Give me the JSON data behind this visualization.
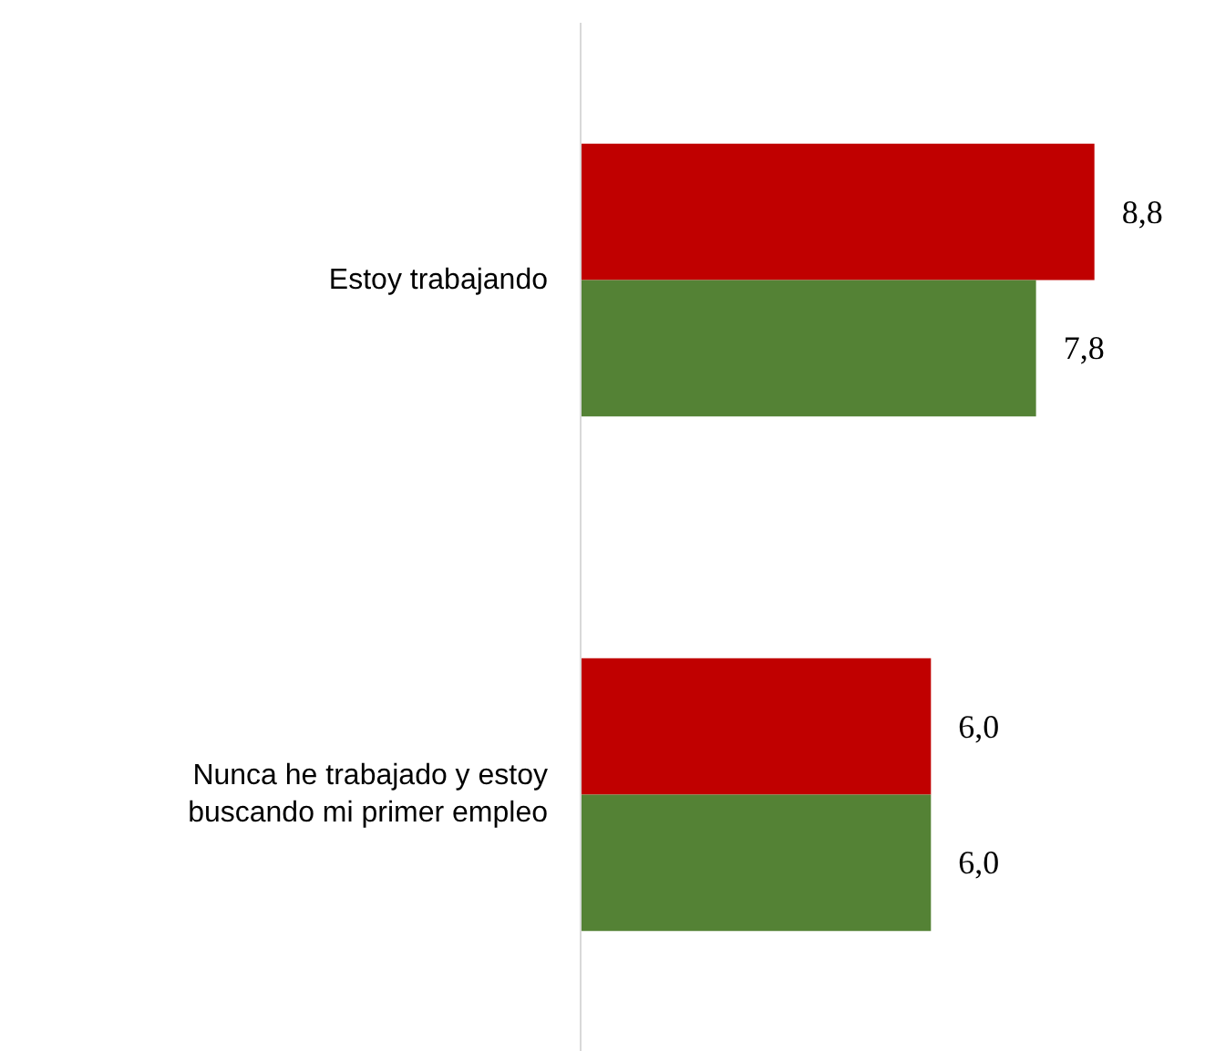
{
  "chart_data": {
    "type": "bar",
    "orientation": "horizontal",
    "categories": [
      "Estoy trabajando",
      "Nunca he trabajado y estoy buscando mi primer empleo"
    ],
    "series": [
      {
        "color": "#c00000",
        "values": [
          8.8,
          6.0
        ],
        "value_labels": [
          "8,8",
          "6,0"
        ]
      },
      {
        "color": "#548235",
        "values": [
          7.8,
          6.0
        ],
        "value_labels": [
          "7,8",
          "6,0"
        ]
      }
    ],
    "grid": false
  }
}
